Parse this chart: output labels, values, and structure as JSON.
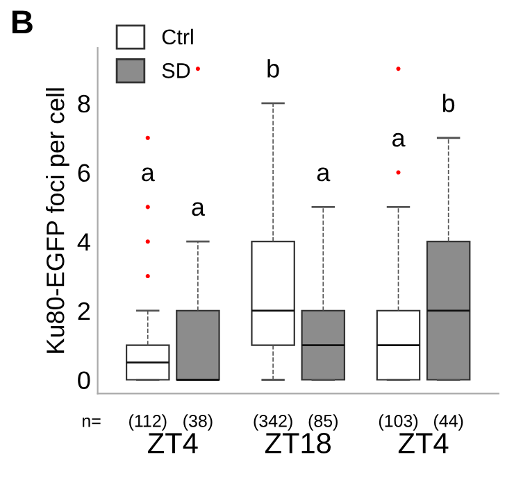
{
  "chart_data": {
    "type": "box",
    "title": "B",
    "ylabel": "Ku80-EGFP foci per cell",
    "categories": [
      "ZT4",
      "ZT18",
      "ZT4"
    ],
    "ylim": [
      -0.4,
      9.6
    ],
    "yticks": [
      0,
      2,
      4,
      6,
      8
    ],
    "grid": false,
    "legend": "top left",
    "series": [
      {
        "name": "Ctrl",
        "color": "#ffffff",
        "boxes": [
          {
            "low": 0,
            "q1": 0,
            "median": 0.5,
            "q3": 1,
            "high": 2,
            "outliers": [
              3,
              4,
              5,
              7
            ]
          },
          {
            "low": 0,
            "q1": 1,
            "median": 2,
            "q3": 4,
            "high": 8
          },
          {
            "low": 0,
            "q1": 0,
            "median": 1,
            "q3": 2,
            "high": 5,
            "outliers": [
              6,
              9
            ]
          }
        ]
      },
      {
        "name": "SD",
        "color": "#8c8c8c",
        "boxes": [
          {
            "low": 0,
            "q1": 0,
            "median": 0,
            "q3": 2,
            "high": 4,
            "outliers": [
              9
            ]
          },
          {
            "low": 0,
            "q1": 0,
            "median": 1,
            "q3": 2,
            "high": 5
          },
          {
            "low": 0,
            "q1": 0,
            "median": 2,
            "q3": 4,
            "high": 7
          }
        ]
      }
    ],
    "annotations": [
      "a",
      "a",
      "b",
      "a",
      "a",
      "b",
      "n=",
      "(112)",
      "(38)",
      "(342)",
      "(85)",
      "(103)",
      "(44)"
    ]
  }
}
